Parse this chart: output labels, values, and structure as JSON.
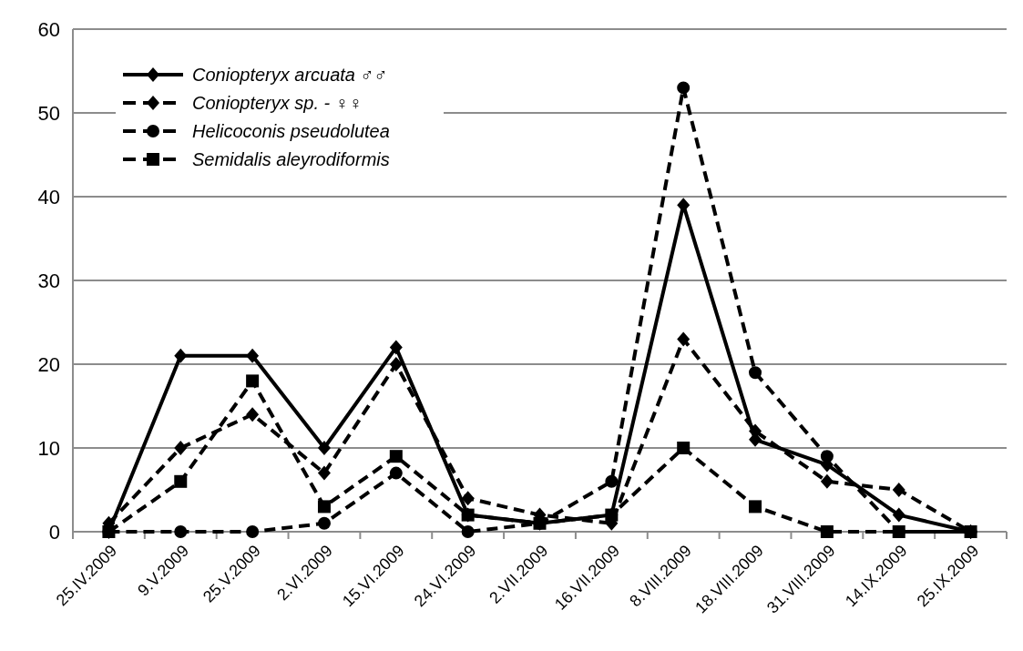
{
  "chart_data": {
    "type": "line",
    "categories": [
      "25.IV.2009",
      "9.V.2009",
      "25.V.2009",
      "2.VI.2009",
      "15.VI.2009",
      "24.VI.2009",
      "2.VII.2009",
      "16.VII.2009",
      "8.VIII.2009",
      "18.VIII.2009",
      "31.VIII.2009",
      "14.IX.2009",
      "25.IX.2009"
    ],
    "series": [
      {
        "name": "Coniopteryx arcuata ♂♂",
        "color": "#000000",
        "marker": "diamond",
        "line_style": "solid",
        "values": [
          0,
          21,
          21,
          10,
          22,
          2,
          1,
          2,
          39,
          11,
          8,
          2,
          0
        ]
      },
      {
        "name": "Coniopteryx sp. - ♀♀",
        "color": "#000000",
        "marker": "diamond",
        "line_style": "dashed",
        "values": [
          1,
          10,
          14,
          7,
          20,
          4,
          2,
          1,
          23,
          12,
          6,
          5,
          0
        ]
      },
      {
        "name": "Helicoconis pseudolutea",
        "color": "#000000",
        "marker": "circle",
        "line_style": "dashed",
        "values": [
          0,
          0,
          0,
          1,
          7,
          0,
          1,
          6,
          53,
          19,
          9,
          0,
          0
        ]
      },
      {
        "name": "Semidalis aleyrodiformis",
        "color": "#000000",
        "marker": "square",
        "line_style": "dashed",
        "values": [
          0,
          6,
          18,
          3,
          9,
          2,
          1,
          2,
          10,
          3,
          0,
          0,
          0
        ]
      }
    ],
    "ylim": [
      0,
      60
    ],
    "yticks": [
      0,
      10,
      20,
      30,
      40,
      50,
      60
    ],
    "grid": "y",
    "legend": "top left"
  }
}
